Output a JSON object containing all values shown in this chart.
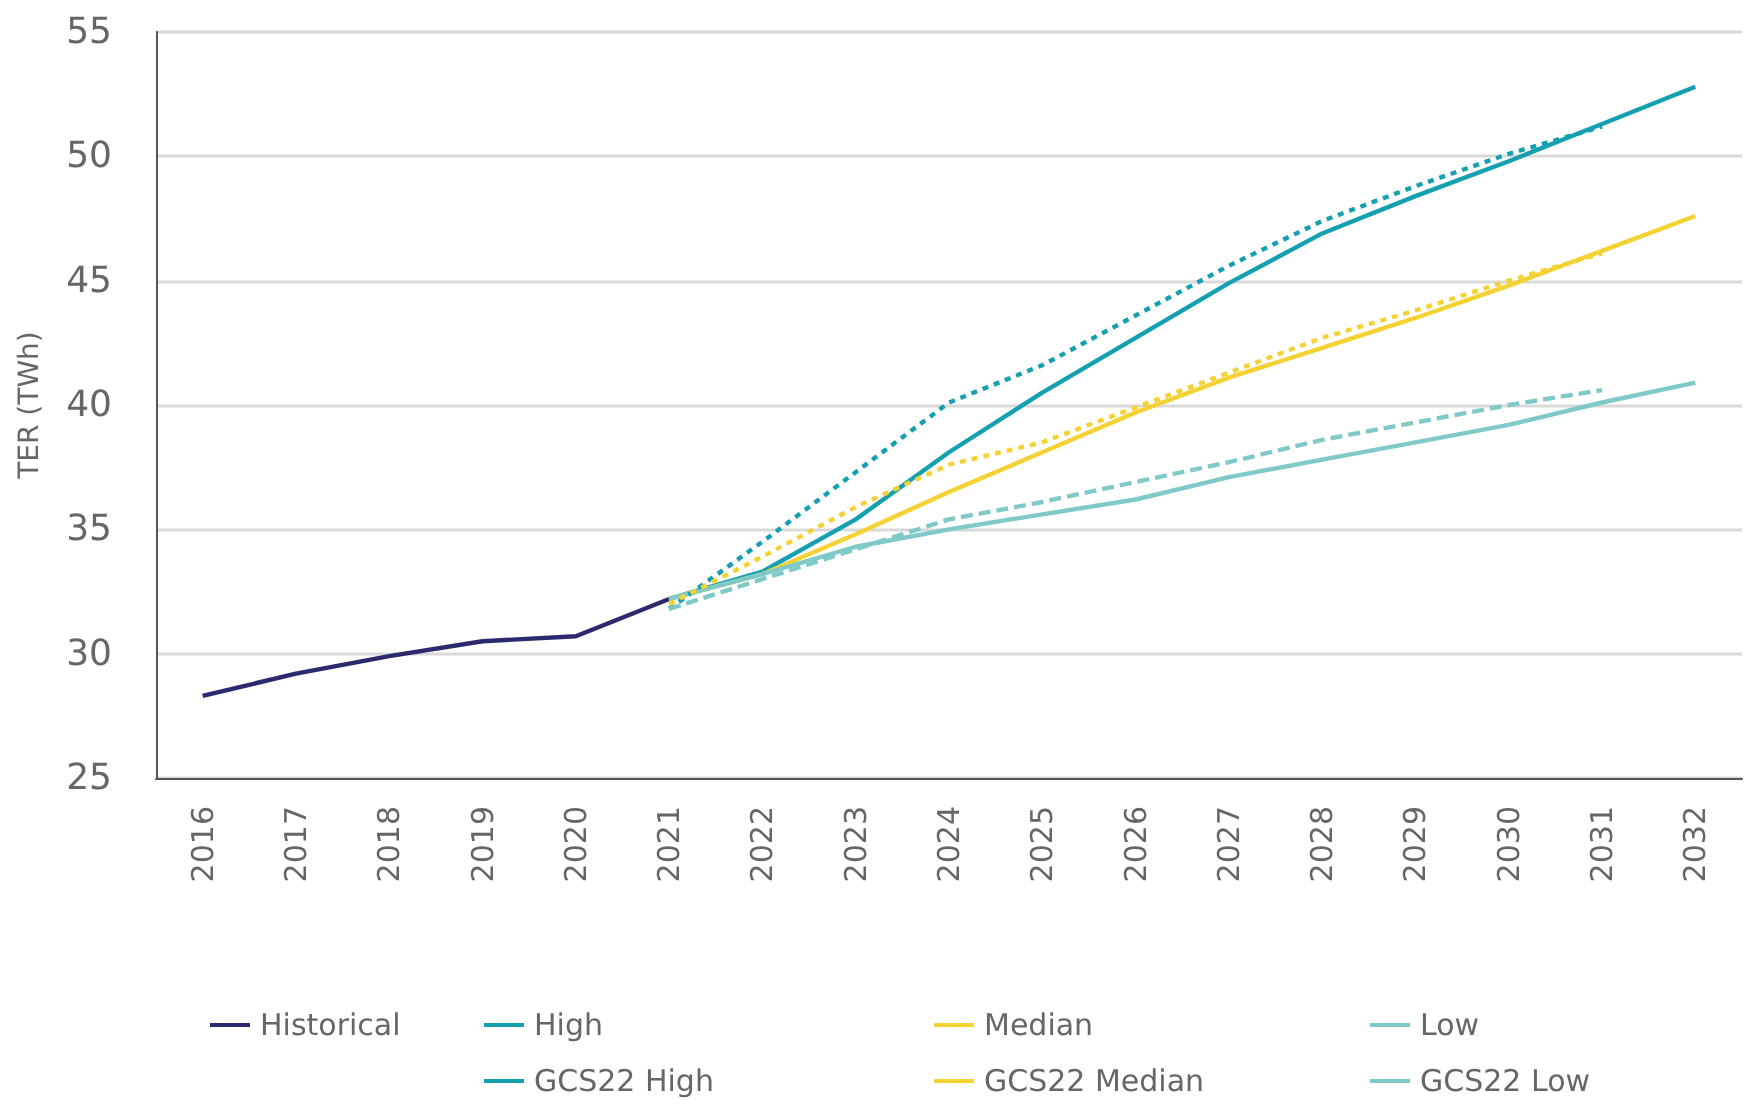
{
  "chart_data": {
    "type": "line",
    "ylabel": "TER (TWh)",
    "categories": [
      "2016",
      "2017",
      "2018",
      "2019",
      "2020",
      "2021",
      "2022",
      "2023",
      "2024",
      "2025",
      "2026",
      "2027",
      "2028",
      "2029",
      "2030",
      "2031",
      "2032"
    ],
    "series": [
      {
        "name": "Historical",
        "color": "#2b2a6e",
        "line_style": "solid",
        "values": [
          28.3,
          29.2,
          29.9,
          30.5,
          30.7,
          32.2,
          null,
          null,
          null,
          null,
          null,
          null,
          null,
          null,
          null,
          null,
          null
        ]
      },
      {
        "name": "High",
        "color": "#14a0b0",
        "line_style": "solid",
        "values": [
          null,
          null,
          null,
          null,
          null,
          32.2,
          33.3,
          35.4,
          38.1,
          40.5,
          42.7,
          44.9,
          46.9,
          48.4,
          49.8,
          51.3,
          52.8
        ]
      },
      {
        "name": "Median",
        "color": "#f5d234",
        "line_style": "solid",
        "values": [
          null,
          null,
          null,
          null,
          null,
          32.2,
          33.2,
          34.8,
          36.5,
          38.1,
          39.7,
          41.1,
          42.3,
          43.5,
          44.8,
          46.2,
          47.6
        ]
      },
      {
        "name": "Low",
        "color": "#7fcac9",
        "line_style": "solid",
        "values": [
          null,
          null,
          null,
          null,
          null,
          32.2,
          33.2,
          34.3,
          35.0,
          35.6,
          36.2,
          37.1,
          37.8,
          38.5,
          39.2,
          40.1,
          40.9
        ]
      },
      {
        "name": "GCS22 High",
        "color": "#14a0b0",
        "line_style": "dotted",
        "values": [
          null,
          null,
          null,
          null,
          null,
          31.8,
          34.5,
          37.3,
          40.1,
          41.6,
          43.6,
          45.6,
          47.4,
          48.8,
          50.1,
          51.2,
          null
        ]
      },
      {
        "name": "GCS22 Median",
        "color": "#f5d234",
        "line_style": "dotted",
        "values": [
          null,
          null,
          null,
          null,
          null,
          32.0,
          33.9,
          35.9,
          37.6,
          38.5,
          39.9,
          41.3,
          42.7,
          43.8,
          45.0,
          46.1,
          null
        ]
      },
      {
        "name": "GCS22 Low",
        "color": "#7fcac9",
        "line_style": "dashed",
        "values": [
          null,
          null,
          null,
          null,
          null,
          31.8,
          33.0,
          34.2,
          35.4,
          36.1,
          36.9,
          37.7,
          38.6,
          39.3,
          40.0,
          40.6,
          null
        ]
      }
    ],
    "ylim": [
      25,
      55
    ],
    "yticks": [
      25,
      30,
      35,
      40,
      45,
      50,
      55
    ],
    "grid": "y",
    "legend": "bottom",
    "marker": "none"
  }
}
